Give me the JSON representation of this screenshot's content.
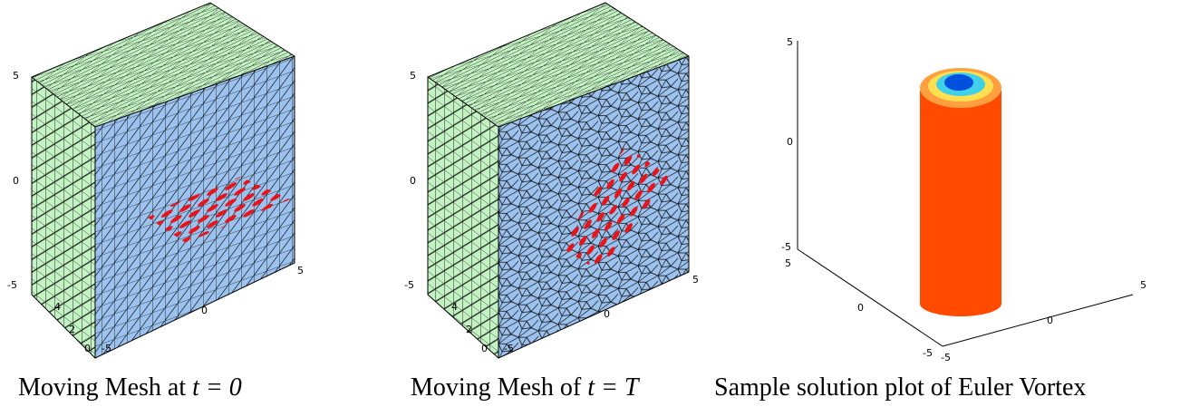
{
  "panels": [
    {
      "caption": {
        "text": "Moving Mesh at ",
        "math": "t = 0"
      },
      "vertical_ticks": [
        "5",
        "0",
        "-5"
      ],
      "depth_ticks": [
        "4",
        "2",
        "0"
      ],
      "horizontal_ticks": [
        "-5",
        "0",
        "5"
      ]
    },
    {
      "caption": {
        "text": "Moving Mesh of ",
        "math": "t = T"
      },
      "vertical_ticks": [
        "5",
        "0",
        "-5"
      ],
      "depth_ticks": [
        "4",
        "2",
        "0"
      ],
      "horizontal_ticks": [
        "-5",
        "0",
        "5"
      ]
    },
    {
      "caption": {
        "text": "Sample solution plot of Euler Vortex"
      },
      "vertical_ticks": [
        "5",
        "0",
        "-5"
      ],
      "left_ticks": [
        "5",
        "0",
        "-5"
      ],
      "right_ticks": [
        "-5",
        "0",
        "5"
      ]
    }
  ]
}
